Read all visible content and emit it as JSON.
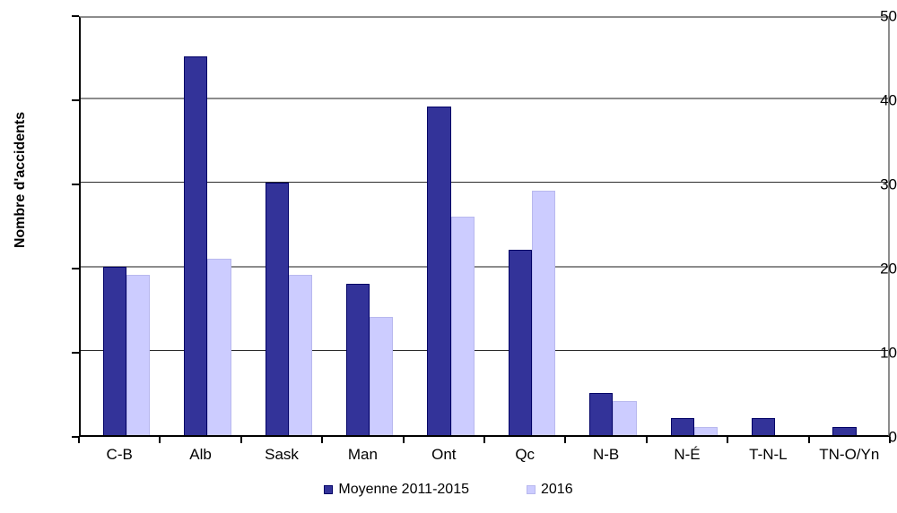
{
  "chart_data": {
    "type": "bar",
    "title": "",
    "xlabel": "",
    "ylabel": "Nombre d'accidents",
    "categories": [
      "C-B",
      "Alb",
      "Sask",
      "Man",
      "Ont",
      "Qc",
      "N-B",
      "N-É",
      "T-N-L",
      "TN-O/Yn"
    ],
    "series": [
      {
        "name": "Moyenne 2011-2015",
        "values": [
          20,
          45,
          30,
          18,
          39,
          22,
          5,
          2,
          2,
          1
        ],
        "fill_color": "#333399",
        "border_color": "#000066"
      },
      {
        "name": "2016",
        "values": [
          19,
          21,
          19,
          14,
          26,
          29,
          4,
          1,
          0,
          0
        ],
        "fill_color": "#ccccff",
        "border_color": "#b8b8ee"
      }
    ],
    "ylim": [
      0,
      50
    ],
    "yticks": [
      0,
      10,
      20,
      30,
      40,
      50
    ],
    "grid": true,
    "gridline_values": [
      10,
      20,
      30,
      40
    ],
    "legend_position": "bottom"
  }
}
